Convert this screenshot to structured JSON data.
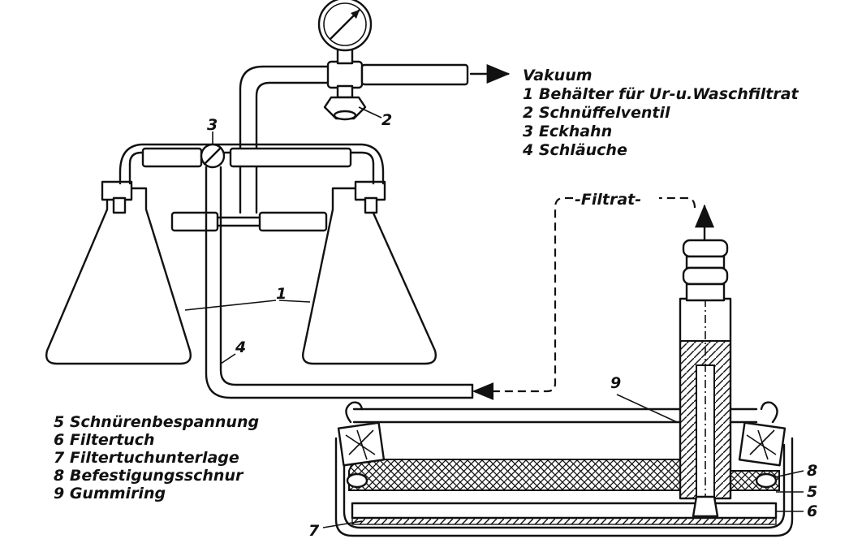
{
  "labels": {
    "vacuum": "Vakuum",
    "filtrate": "-Filtrat-",
    "legend_top": [
      "1 Behälter für Ur-u.Waschfiltrat",
      "2 Schnüffelventil",
      "3 Eckhahn",
      "4 Schläuche"
    ],
    "legend_bottom": [
      "5 Schnürenbespannung",
      "6 Filtertuch",
      "7 Filtertuchunterlage",
      "8 Befestigungsschnur",
      "9 Gummiring"
    ],
    "callouts": {
      "n1": "1",
      "n2": "2",
      "n3": "3",
      "n4": "4",
      "n5": "5",
      "n6": "6",
      "n7": "7",
      "n8": "8",
      "n9": "9"
    }
  }
}
